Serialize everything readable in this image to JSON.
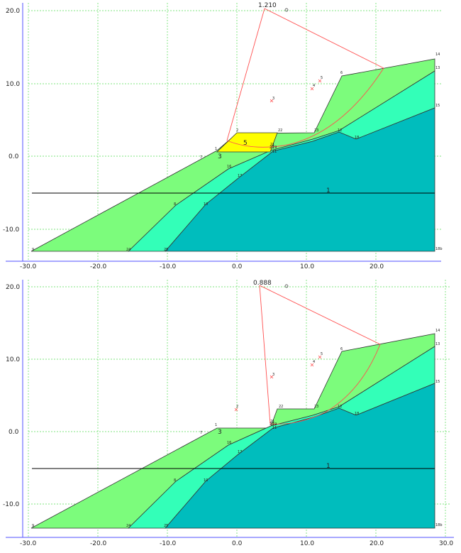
{
  "colors": {
    "soil_top": "#7cfc7c",
    "soil_mid": "#33ffb8",
    "soil_bottom": "#00bdbd",
    "reinforced_block": "#ffff00",
    "slip_circle": "#ff5050",
    "grid": "#55dd55",
    "axis": "#5050ff",
    "water_line": "#000000"
  },
  "panel_top": {
    "fos": "1.210",
    "zone_labels": [
      "5",
      "3"
    ],
    "water_label": "1",
    "y_ticks": [
      "20.0",
      "10.0",
      "0.0",
      "-10.0"
    ],
    "x_ticks": [
      "-30.0",
      "-20.0",
      "-10.0",
      "0.0",
      "10.0",
      "20.0",
      ""
    ],
    "points": [
      {
        "id": "2",
        "x": 0.0,
        "y": 3.2
      },
      {
        "id": "22",
        "x": 5.5,
        "y": 3.2
      },
      {
        "id": "23",
        "x": 10.8,
        "y": 3.2
      },
      {
        "id": "1",
        "x": -3.0,
        "y": 0.7
      },
      {
        "id": "7",
        "x": -5.0,
        "y": -0.2
      },
      {
        "id": "21",
        "x": 4.7,
        "y": 1.2
      },
      {
        "id": "20",
        "x": 4.6,
        "y": 0.9
      },
      {
        "id": "19",
        "x": 5.0,
        "y": 0.9
      },
      {
        "id": "11",
        "x": 4.9,
        "y": 0.5
      },
      {
        "id": "16",
        "x": -1.5,
        "y": -1.5
      },
      {
        "id": "17",
        "x": 0.0,
        "y": -3.0
      },
      {
        "id": "12",
        "x": 14.2,
        "y": 3.2
      },
      {
        "id": "18",
        "x": 16.6,
        "y": 2.2
      },
      {
        "id": "6",
        "x": 14.8,
        "y": 11.0
      },
      {
        "id": "14",
        "x": 28.0,
        "y": 13.6
      },
      {
        "id": "13",
        "x": 28.0,
        "y": 11.9
      },
      {
        "id": "15",
        "x": 28.0,
        "y": 6.8
      },
      {
        "id": "8",
        "x": -9.5,
        "y": -6.7
      },
      {
        "id": "10",
        "x": -4.9,
        "y": -6.7
      },
      {
        "id": "9",
        "x": -29.0,
        "y": -13.0
      },
      {
        "id": "24",
        "x": -15.8,
        "y": -13.0
      },
      {
        "id": "25",
        "x": -10.3,
        "y": -13.0
      },
      {
        "id": "18b",
        "x": 28.0,
        "y": -13.0
      },
      {
        "id": "3",
        "x": 5.0,
        "y": 7.8
      },
      {
        "id": "4",
        "x": 10.6,
        "y": 9.5
      },
      {
        "id": "5",
        "x": 11.5,
        "y": 10.4
      }
    ]
  },
  "panel_bottom": {
    "fos": "0.888",
    "zone_labels": [
      "3"
    ],
    "water_label": "1",
    "y_ticks": [
      "20.0",
      "10.0",
      "0.0",
      "-10.0"
    ],
    "x_ticks": [
      "-30.0",
      "-20.0",
      "-10.0",
      "0.0",
      "10.0",
      "20.0",
      "30.0"
    ],
    "points": [
      {
        "id": "2",
        "x": 0.0,
        "y": 3.2
      },
      {
        "id": "22",
        "x": 5.9,
        "y": 3.2
      },
      {
        "id": "23",
        "x": 11.0,
        "y": 3.2
      },
      {
        "id": "1",
        "x": -3.0,
        "y": 0.7
      },
      {
        "id": "7",
        "x": -5.0,
        "y": -0.2
      },
      {
        "id": "21",
        "x": 4.9,
        "y": 1.2
      },
      {
        "id": "20",
        "x": 4.7,
        "y": 0.9
      },
      {
        "id": "19",
        "x": 5.1,
        "y": 0.9
      },
      {
        "id": "11",
        "x": 5.0,
        "y": 0.5
      },
      {
        "id": "16",
        "x": -1.5,
        "y": -1.5
      },
      {
        "id": "17",
        "x": 0.0,
        "y": -3.0
      },
      {
        "id": "12",
        "x": 14.2,
        "y": 3.2
      },
      {
        "id": "18",
        "x": 16.6,
        "y": 2.2
      },
      {
        "id": "6",
        "x": 14.8,
        "y": 11.0
      },
      {
        "id": "14",
        "x": 28.0,
        "y": 13.6
      },
      {
        "id": "13",
        "x": 28.0,
        "y": 11.9
      },
      {
        "id": "15",
        "x": 28.0,
        "y": 6.8
      },
      {
        "id": "8",
        "x": -9.5,
        "y": -6.7
      },
      {
        "id": "10",
        "x": -4.9,
        "y": -6.7
      },
      {
        "id": "9",
        "x": -29.0,
        "y": -13.0
      },
      {
        "id": "24",
        "x": -15.8,
        "y": -13.0
      },
      {
        "id": "25",
        "x": -10.3,
        "y": -13.0
      },
      {
        "id": "18b",
        "x": 28.0,
        "y": -13.0
      },
      {
        "id": "3",
        "x": 5.0,
        "y": 7.8
      },
      {
        "id": "4",
        "x": 10.6,
        "y": 9.5
      },
      {
        "id": "5",
        "x": 11.5,
        "y": 10.4
      }
    ]
  }
}
